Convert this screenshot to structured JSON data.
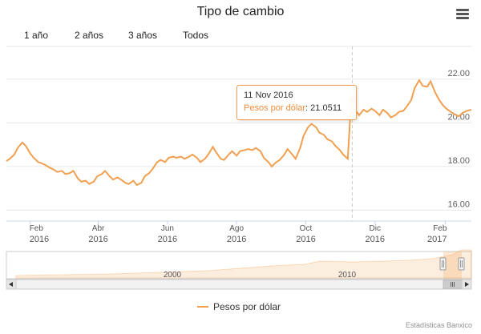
{
  "title": "Tipo de cambio",
  "range_buttons": [
    "1 año",
    "2 años",
    "3 años",
    "Todos"
  ],
  "tooltip": {
    "date": "11 Nov 2016",
    "series": "Pesos por dólar",
    "separator": ": ",
    "value": "21.0511"
  },
  "legend": {
    "label": "Pesos por dólar"
  },
  "credits": "Estadísticas Banxico",
  "navigator": {
    "labels": [
      "2000",
      "2010"
    ]
  },
  "colors": {
    "series": "#f0a050",
    "marker": "#f08c3c",
    "crosshair": "#cccccc",
    "grid": "#e6e6e6"
  },
  "chart_data": {
    "type": "line",
    "series": [
      {
        "name": "Pesos por dólar"
      }
    ],
    "x_ticks": [
      {
        "date": "2016-02-01",
        "label_month": "Feb",
        "label_year": "2016"
      },
      {
        "date": "2016-04-01",
        "label_month": "Abr",
        "label_year": "2016"
      },
      {
        "date": "2016-06-01",
        "label_month": "Jun",
        "label_year": "2016"
      },
      {
        "date": "2016-08-01",
        "label_month": "Ago",
        "label_year": "2016"
      },
      {
        "date": "2016-10-01",
        "label_month": "Oct",
        "label_year": "2016"
      },
      {
        "date": "2016-12-01",
        "label_month": "Dic",
        "label_year": "2016"
      },
      {
        "date": "2017-02-01",
        "label_month": "Feb",
        "label_year": "2017"
      }
    ],
    "y_ticks": [
      "16.00",
      "18.00",
      "20.00",
      "22.00"
    ],
    "ylim": [
      15.5,
      23.5
    ],
    "xlim": [
      "2016-01-11",
      "2017-02-24"
    ],
    "y_axis_side": "right",
    "grid": true,
    "highlight": {
      "date": "2016-11-11",
      "value": 21.0511
    },
    "points": [
      [
        "2016-01-11",
        18.25
      ],
      [
        "2016-01-14",
        18.35
      ],
      [
        "2016-01-18",
        18.55
      ],
      [
        "2016-01-21",
        18.85
      ],
      [
        "2016-01-25",
        19.1
      ],
      [
        "2016-01-28",
        18.95
      ],
      [
        "2016-02-01",
        18.6
      ],
      [
        "2016-02-04",
        18.4
      ],
      [
        "2016-02-08",
        18.2
      ],
      [
        "2016-02-11",
        18.15
      ],
      [
        "2016-02-15",
        18.05
      ],
      [
        "2016-02-18",
        17.95
      ],
      [
        "2016-02-22",
        17.85
      ],
      [
        "2016-02-25",
        17.75
      ],
      [
        "2016-02-29",
        17.8
      ],
      [
        "2016-03-03",
        17.65
      ],
      [
        "2016-03-07",
        17.7
      ],
      [
        "2016-03-10",
        17.8
      ],
      [
        "2016-03-14",
        17.45
      ],
      [
        "2016-03-17",
        17.3
      ],
      [
        "2016-03-21",
        17.35
      ],
      [
        "2016-03-24",
        17.2
      ],
      [
        "2016-03-28",
        17.3
      ],
      [
        "2016-03-31",
        17.55
      ],
      [
        "2016-04-04",
        17.65
      ],
      [
        "2016-04-07",
        17.8
      ],
      [
        "2016-04-11",
        17.55
      ],
      [
        "2016-04-14",
        17.4
      ],
      [
        "2016-04-18",
        17.5
      ],
      [
        "2016-04-21",
        17.4
      ],
      [
        "2016-04-25",
        17.25
      ],
      [
        "2016-04-28",
        17.2
      ],
      [
        "2016-05-02",
        17.35
      ],
      [
        "2016-05-05",
        17.15
      ],
      [
        "2016-05-09",
        17.25
      ],
      [
        "2016-05-12",
        17.55
      ],
      [
        "2016-05-16",
        17.7
      ],
      [
        "2016-05-19",
        17.9
      ],
      [
        "2016-05-23",
        18.2
      ],
      [
        "2016-05-26",
        18.3
      ],
      [
        "2016-05-30",
        18.2
      ],
      [
        "2016-06-02",
        18.4
      ],
      [
        "2016-06-06",
        18.45
      ],
      [
        "2016-06-09",
        18.4
      ],
      [
        "2016-06-13",
        18.45
      ],
      [
        "2016-06-16",
        18.35
      ],
      [
        "2016-06-20",
        18.45
      ],
      [
        "2016-06-23",
        18.55
      ],
      [
        "2016-06-27",
        18.4
      ],
      [
        "2016-06-30",
        18.2
      ],
      [
        "2016-07-04",
        18.35
      ],
      [
        "2016-07-07",
        18.55
      ],
      [
        "2016-07-11",
        18.9
      ],
      [
        "2016-07-14",
        18.65
      ],
      [
        "2016-07-18",
        18.35
      ],
      [
        "2016-07-21",
        18.3
      ],
      [
        "2016-07-25",
        18.55
      ],
      [
        "2016-07-28",
        18.7
      ],
      [
        "2016-08-01",
        18.5
      ],
      [
        "2016-08-04",
        18.7
      ],
      [
        "2016-08-08",
        18.75
      ],
      [
        "2016-08-11",
        18.8
      ],
      [
        "2016-08-15",
        18.75
      ],
      [
        "2016-08-18",
        18.85
      ],
      [
        "2016-08-22",
        18.7
      ],
      [
        "2016-08-25",
        18.4
      ],
      [
        "2016-08-29",
        18.2
      ],
      [
        "2016-09-01",
        18.0
      ],
      [
        "2016-09-05",
        18.2
      ],
      [
        "2016-09-08",
        18.3
      ],
      [
        "2016-09-12",
        18.55
      ],
      [
        "2016-09-15",
        18.8
      ],
      [
        "2016-09-19",
        18.55
      ],
      [
        "2016-09-22",
        18.35
      ],
      [
        "2016-09-26",
        18.85
      ],
      [
        "2016-09-29",
        19.4
      ],
      [
        "2016-10-03",
        19.8
      ],
      [
        "2016-10-06",
        19.95
      ],
      [
        "2016-10-10",
        19.8
      ],
      [
        "2016-10-13",
        19.55
      ],
      [
        "2016-10-17",
        19.45
      ],
      [
        "2016-10-20",
        19.25
      ],
      [
        "2016-10-24",
        19.15
      ],
      [
        "2016-10-27",
        18.95
      ],
      [
        "2016-10-31",
        18.75
      ],
      [
        "2016-11-03",
        18.55
      ],
      [
        "2016-11-07",
        18.35
      ],
      [
        "2016-11-09",
        20.1
      ],
      [
        "2016-11-11",
        21.0511
      ],
      [
        "2016-11-14",
        20.55
      ],
      [
        "2016-11-17",
        20.35
      ],
      [
        "2016-11-21",
        20.6
      ],
      [
        "2016-11-24",
        20.5
      ],
      [
        "2016-11-28",
        20.65
      ],
      [
        "2016-12-01",
        20.55
      ],
      [
        "2016-12-05",
        20.35
      ],
      [
        "2016-12-08",
        20.6
      ],
      [
        "2016-12-12",
        20.45
      ],
      [
        "2016-12-15",
        20.25
      ],
      [
        "2016-12-19",
        20.35
      ],
      [
        "2016-12-22",
        20.5
      ],
      [
        "2016-12-26",
        20.55
      ],
      [
        "2016-12-29",
        20.75
      ],
      [
        "2017-01-02",
        21.05
      ],
      [
        "2017-01-05",
        21.6
      ],
      [
        "2017-01-09",
        21.95
      ],
      [
        "2017-01-12",
        21.7
      ],
      [
        "2017-01-16",
        21.65
      ],
      [
        "2017-01-19",
        21.9
      ],
      [
        "2017-01-23",
        21.4
      ],
      [
        "2017-01-26",
        21.1
      ],
      [
        "2017-01-30",
        20.8
      ],
      [
        "2017-02-02",
        20.65
      ],
      [
        "2017-02-06",
        20.5
      ],
      [
        "2017-02-09",
        20.4
      ],
      [
        "2017-02-13",
        20.3
      ],
      [
        "2017-02-16",
        20.45
      ],
      [
        "2017-02-20",
        20.55
      ],
      [
        "2017-02-24",
        20.6
      ]
    ]
  }
}
